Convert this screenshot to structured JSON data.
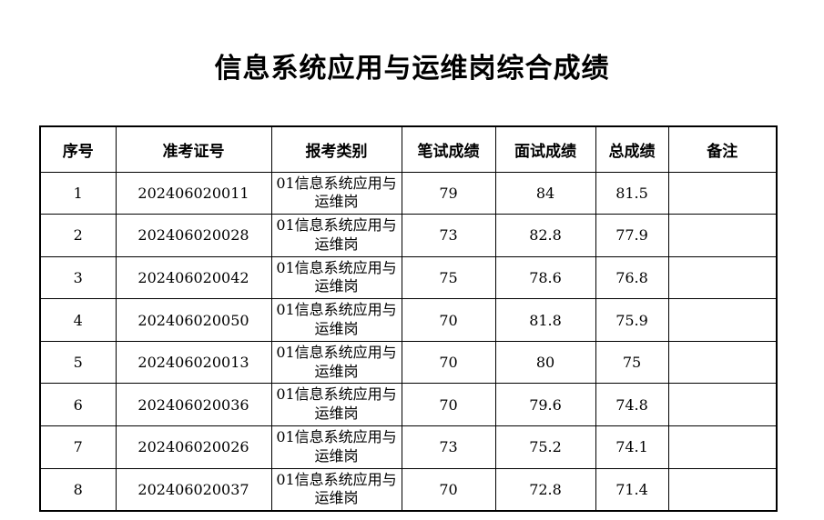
{
  "title": "信息系统应用与运维岗综合成绩",
  "table": {
    "headers": {
      "no": "序号",
      "ticket": "准考证号",
      "category": "报考类别",
      "written": "笔试成绩",
      "interview": "面试成绩",
      "total": "总成绩",
      "remark": "备注"
    },
    "rows": [
      {
        "no": "1",
        "ticket": "202406020011",
        "category": "01信息系统应用与运维岗",
        "written": "79",
        "interview": "84",
        "total": "81.5",
        "remark": ""
      },
      {
        "no": "2",
        "ticket": "202406020028",
        "category": "01信息系统应用与运维岗",
        "written": "73",
        "interview": "82.8",
        "total": "77.9",
        "remark": ""
      },
      {
        "no": "3",
        "ticket": "202406020042",
        "category": "01信息系统应用与运维岗",
        "written": "75",
        "interview": "78.6",
        "total": "76.8",
        "remark": ""
      },
      {
        "no": "4",
        "ticket": "202406020050",
        "category": "01信息系统应用与运维岗",
        "written": "70",
        "interview": "81.8",
        "total": "75.9",
        "remark": ""
      },
      {
        "no": "5",
        "ticket": "202406020013",
        "category": "01信息系统应用与运维岗",
        "written": "70",
        "interview": "80",
        "total": "75",
        "remark": ""
      },
      {
        "no": "6",
        "ticket": "202406020036",
        "category": "01信息系统应用与运维岗",
        "written": "70",
        "interview": "79.6",
        "total": "74.8",
        "remark": ""
      },
      {
        "no": "7",
        "ticket": "202406020026",
        "category": "01信息系统应用与运维岗",
        "written": "73",
        "interview": "75.2",
        "total": "74.1",
        "remark": ""
      },
      {
        "no": "8",
        "ticket": "202406020037",
        "category": "01信息系统应用与运维岗",
        "written": "70",
        "interview": "72.8",
        "total": "71.4",
        "remark": ""
      }
    ]
  },
  "colors": {
    "text": "#000000",
    "border": "#000000",
    "background": "#ffffff"
  }
}
